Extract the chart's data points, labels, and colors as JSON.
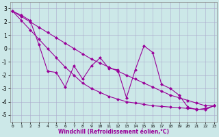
{
  "xlabel": "Windchill (Refroidissement éolien,°C)",
  "x": [
    0,
    1,
    2,
    3,
    4,
    5,
    6,
    7,
    8,
    9,
    10,
    11,
    12,
    13,
    14,
    15,
    16,
    17,
    18,
    19,
    20,
    21,
    22,
    23
  ],
  "y_main": [
    2.8,
    2.5,
    2.1,
    0.3,
    -1.7,
    -1.8,
    -2.9,
    -1.3,
    -2.3,
    -1.3,
    -0.7,
    -1.5,
    -1.6,
    -3.7,
    -1.6,
    0.2,
    -0.3,
    -2.7,
    -3.0,
    -3.5,
    -4.4,
    -4.6,
    -4.5,
    -4.3
  ],
  "y_upper": [
    2.8,
    2.4,
    2.0,
    1.6,
    1.2,
    0.8,
    0.4,
    0.0,
    -0.4,
    -0.8,
    -1.1,
    -1.4,
    -1.7,
    -2.0,
    -2.3,
    -2.6,
    -2.9,
    -3.2,
    -3.5,
    -3.7,
    -3.9,
    -4.1,
    -4.3,
    -4.3
  ],
  "y_lower": [
    2.8,
    2.1,
    1.4,
    0.7,
    0.0,
    -0.7,
    -1.4,
    -2.0,
    -2.6,
    -3.0,
    -3.3,
    -3.6,
    -3.8,
    -4.0,
    -4.1,
    -4.2,
    -4.3,
    -4.35,
    -4.4,
    -4.45,
    -4.5,
    -4.55,
    -4.6,
    -4.3
  ],
  "line_color": "#990099",
  "bg_color": "#cce8e8",
  "grid_color": "#aaaacc",
  "ylim": [
    -5.5,
    3.5
  ],
  "yticks": [
    -5,
    -4,
    -3,
    -2,
    -1,
    0,
    1,
    2,
    3
  ],
  "xticks": [
    0,
    1,
    2,
    3,
    4,
    5,
    6,
    7,
    8,
    9,
    10,
    11,
    12,
    13,
    14,
    15,
    16,
    17,
    18,
    19,
    20,
    21,
    22,
    23
  ],
  "marker": "D",
  "marker_size": 2.5,
  "line_width": 0.8
}
